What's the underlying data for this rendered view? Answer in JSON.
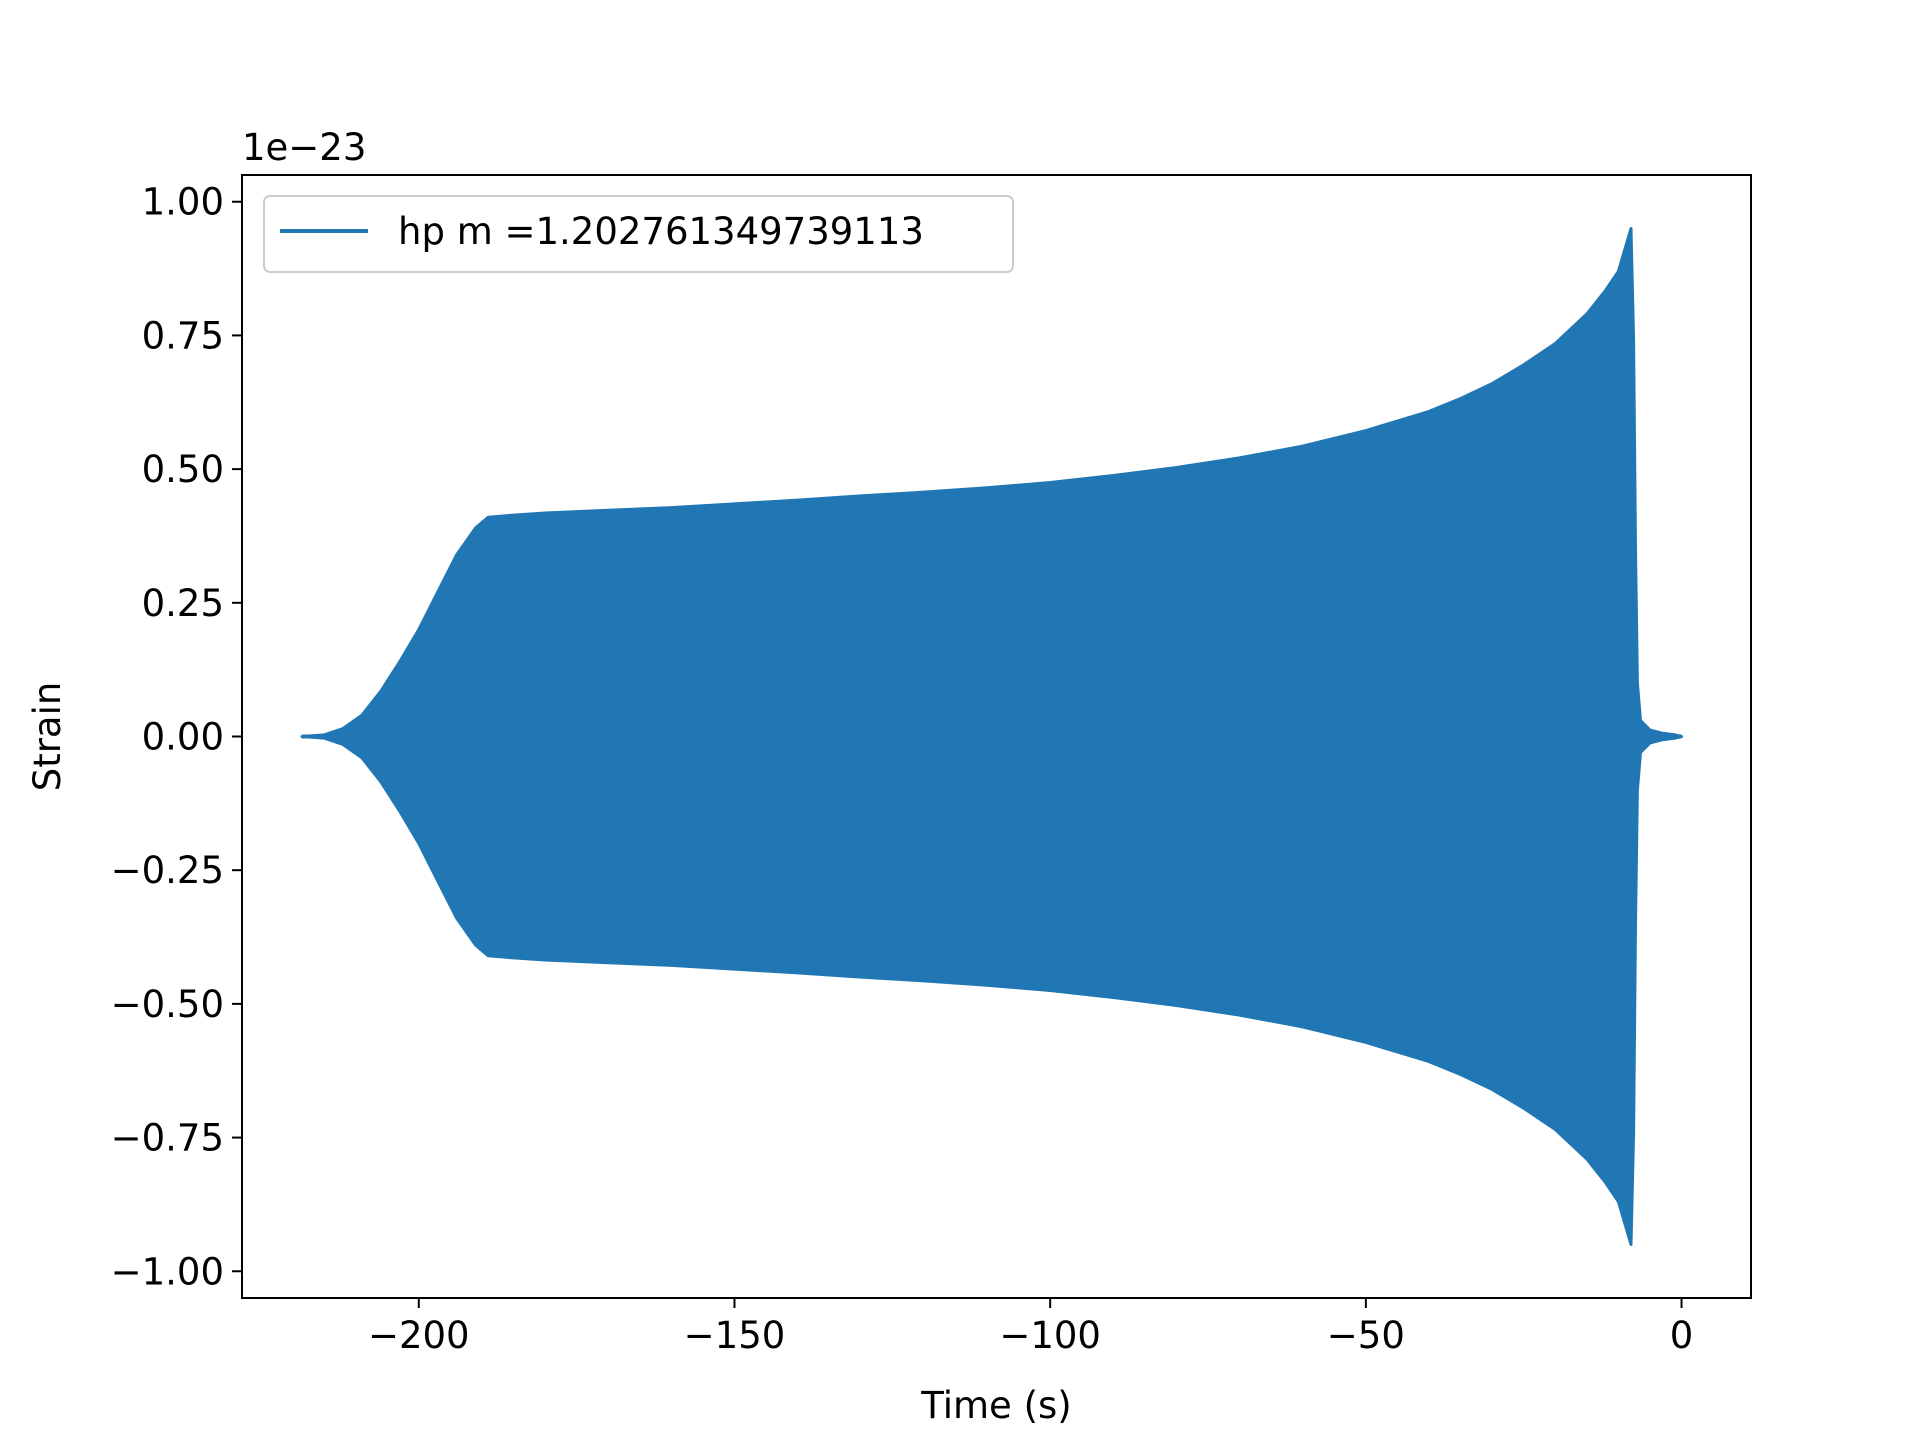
{
  "chart_data": {
    "type": "line",
    "title": "",
    "xlabel": "Time (s)",
    "ylabel": "Strain",
    "y_scale_label": "1e−23",
    "xlim": [
      -228,
      11
    ],
    "ylim": [
      -1.05,
      1.05
    ],
    "x_ticks": [
      -200,
      -150,
      -100,
      -50,
      0
    ],
    "x_tick_labels": [
      "−200",
      "−150",
      "−100",
      "−50",
      "0"
    ],
    "y_ticks": [
      1.0,
      0.75,
      0.5,
      0.25,
      0.0,
      -0.25,
      -0.5,
      -0.75,
      -1.0
    ],
    "y_tick_labels": [
      "1.00",
      "0.75",
      "0.50",
      "0.25",
      "0.00",
      "−0.25",
      "−0.50",
      "−0.75",
      "−1.00"
    ],
    "grid": false,
    "legend_position": "upper-left",
    "color": "#2077b4",
    "series": [
      {
        "name": "hp m =1.202761349739113",
        "envelope": {
          "x": [
            -218.5,
            -215,
            -212,
            -209,
            -206,
            -203,
            -200,
            -197,
            -194,
            -191,
            -189,
            -185,
            -180,
            -170,
            -160,
            -150,
            -140,
            -130,
            -120,
            -110,
            -100,
            -90,
            -80,
            -70,
            -60,
            -50,
            -40,
            -35,
            -30,
            -25,
            -20,
            -15,
            -12,
            -10,
            -8,
            -7.6,
            -7.3,
            -7.0,
            -6.5,
            -5,
            -3,
            -1,
            0
          ],
          "upper": [
            0.0,
            0.003,
            0.015,
            0.04,
            0.085,
            0.14,
            0.2,
            0.27,
            0.34,
            0.39,
            0.41,
            0.414,
            0.418,
            0.423,
            0.428,
            0.435,
            0.442,
            0.45,
            0.457,
            0.465,
            0.475,
            0.488,
            0.503,
            0.521,
            0.543,
            0.572,
            0.608,
            0.632,
            0.66,
            0.695,
            0.735,
            0.79,
            0.835,
            0.87,
            0.95,
            0.74,
            0.35,
            0.1,
            0.03,
            0.012,
            0.006,
            0.003,
            0.0
          ],
          "lower": [
            0.0,
            -0.003,
            -0.015,
            -0.04,
            -0.085,
            -0.14,
            -0.2,
            -0.27,
            -0.34,
            -0.39,
            -0.41,
            -0.414,
            -0.418,
            -0.423,
            -0.428,
            -0.435,
            -0.442,
            -0.45,
            -0.457,
            -0.465,
            -0.475,
            -0.488,
            -0.503,
            -0.521,
            -0.543,
            -0.572,
            -0.608,
            -0.632,
            -0.66,
            -0.695,
            -0.735,
            -0.79,
            -0.835,
            -0.87,
            -0.95,
            -0.74,
            -0.35,
            -0.1,
            -0.03,
            -0.012,
            -0.006,
            -0.003,
            0.0
          ]
        }
      }
    ]
  }
}
